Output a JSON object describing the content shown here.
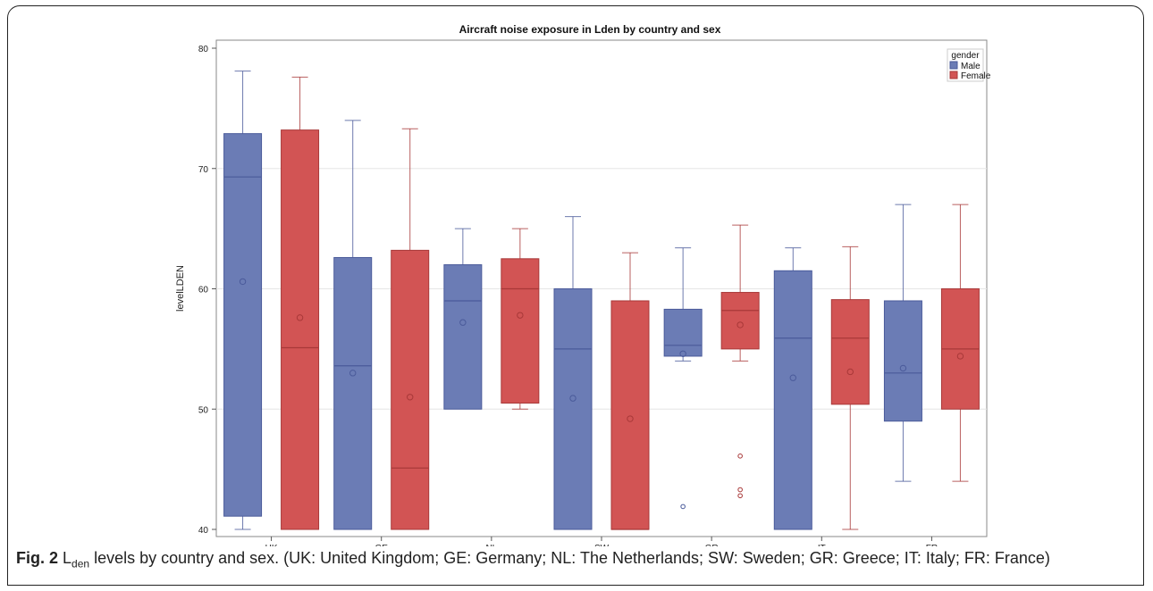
{
  "chart_data": {
    "type": "box",
    "title": "Aircraft noise exposure in Lden by country and sex",
    "xlabel": "",
    "ylabel": "levelLDEN",
    "ylim": [
      40,
      80
    ],
    "yticks": [
      40,
      50,
      60,
      70,
      80
    ],
    "grid": "horizontal",
    "legend": {
      "title": "gender",
      "position": "top-right"
    },
    "categories": [
      "UK",
      "GE",
      "NL",
      "SW",
      "GR",
      "IT",
      "FR"
    ],
    "series": [
      {
        "name": "Male",
        "color": "#6b7cb5",
        "stroke": "#4a5a9a",
        "boxes": [
          {
            "min": 40.0,
            "q1": 41.1,
            "median": 69.3,
            "q3": 72.9,
            "max": 78.1,
            "mean": 60.6,
            "outliers": []
          },
          {
            "min": 40.0,
            "q1": 40.0,
            "median": 53.6,
            "q3": 62.6,
            "max": 74.0,
            "mean": 53.0,
            "outliers": []
          },
          {
            "min": 50.0,
            "q1": 50.0,
            "median": 59.0,
            "q3": 62.0,
            "max": 65.0,
            "mean": 57.2,
            "outliers": []
          },
          {
            "min": 40.0,
            "q1": 40.0,
            "median": 55.0,
            "q3": 60.0,
            "max": 66.0,
            "mean": 50.9,
            "outliers": []
          },
          {
            "min": 54.0,
            "q1": 54.4,
            "median": 55.3,
            "q3": 58.3,
            "max": 63.4,
            "mean": 54.6,
            "outliers": [
              41.9
            ]
          },
          {
            "min": 40.0,
            "q1": 40.0,
            "median": 55.9,
            "q3": 61.5,
            "max": 63.4,
            "mean": 52.6,
            "outliers": []
          },
          {
            "min": 44.0,
            "q1": 49.0,
            "median": 53.0,
            "q3": 59.0,
            "max": 67.0,
            "mean": 53.4,
            "outliers": []
          }
        ]
      },
      {
        "name": "Female",
        "color": "#d25454",
        "stroke": "#a83838",
        "boxes": [
          {
            "min": 40.0,
            "q1": 40.0,
            "median": 55.1,
            "q3": 73.2,
            "max": 77.6,
            "mean": 57.6,
            "outliers": []
          },
          {
            "min": 40.0,
            "q1": 40.0,
            "median": 45.1,
            "q3": 63.2,
            "max": 73.3,
            "mean": 51.0,
            "outliers": []
          },
          {
            "min": 50.0,
            "q1": 50.5,
            "median": 60.0,
            "q3": 62.5,
            "max": 65.0,
            "mean": 57.8,
            "outliers": []
          },
          {
            "min": 40.0,
            "q1": 40.0,
            "median": 40.0,
            "q3": 59.0,
            "max": 63.0,
            "mean": 49.2,
            "outliers": []
          },
          {
            "min": 54.0,
            "q1": 55.0,
            "median": 58.2,
            "q3": 59.7,
            "max": 65.3,
            "mean": 57.0,
            "outliers": [
              46.1,
              43.3,
              42.8
            ]
          },
          {
            "min": 40.0,
            "q1": 50.4,
            "median": 55.9,
            "q3": 59.1,
            "max": 63.5,
            "mean": 53.1,
            "outliers": []
          },
          {
            "min": 44.0,
            "q1": 50.0,
            "median": 55.0,
            "q3": 60.0,
            "max": 67.0,
            "mean": 54.4,
            "outliers": []
          }
        ]
      }
    ]
  },
  "caption": {
    "label": "Fig. 2",
    "symbol_main": "L",
    "symbol_sub": "den",
    "text": " levels by country and sex. (UK: United Kingdom; GE: Germany; NL: The Netherlands; SW: Sweden; GR: Greece; IT: Italy; FR: France)"
  }
}
